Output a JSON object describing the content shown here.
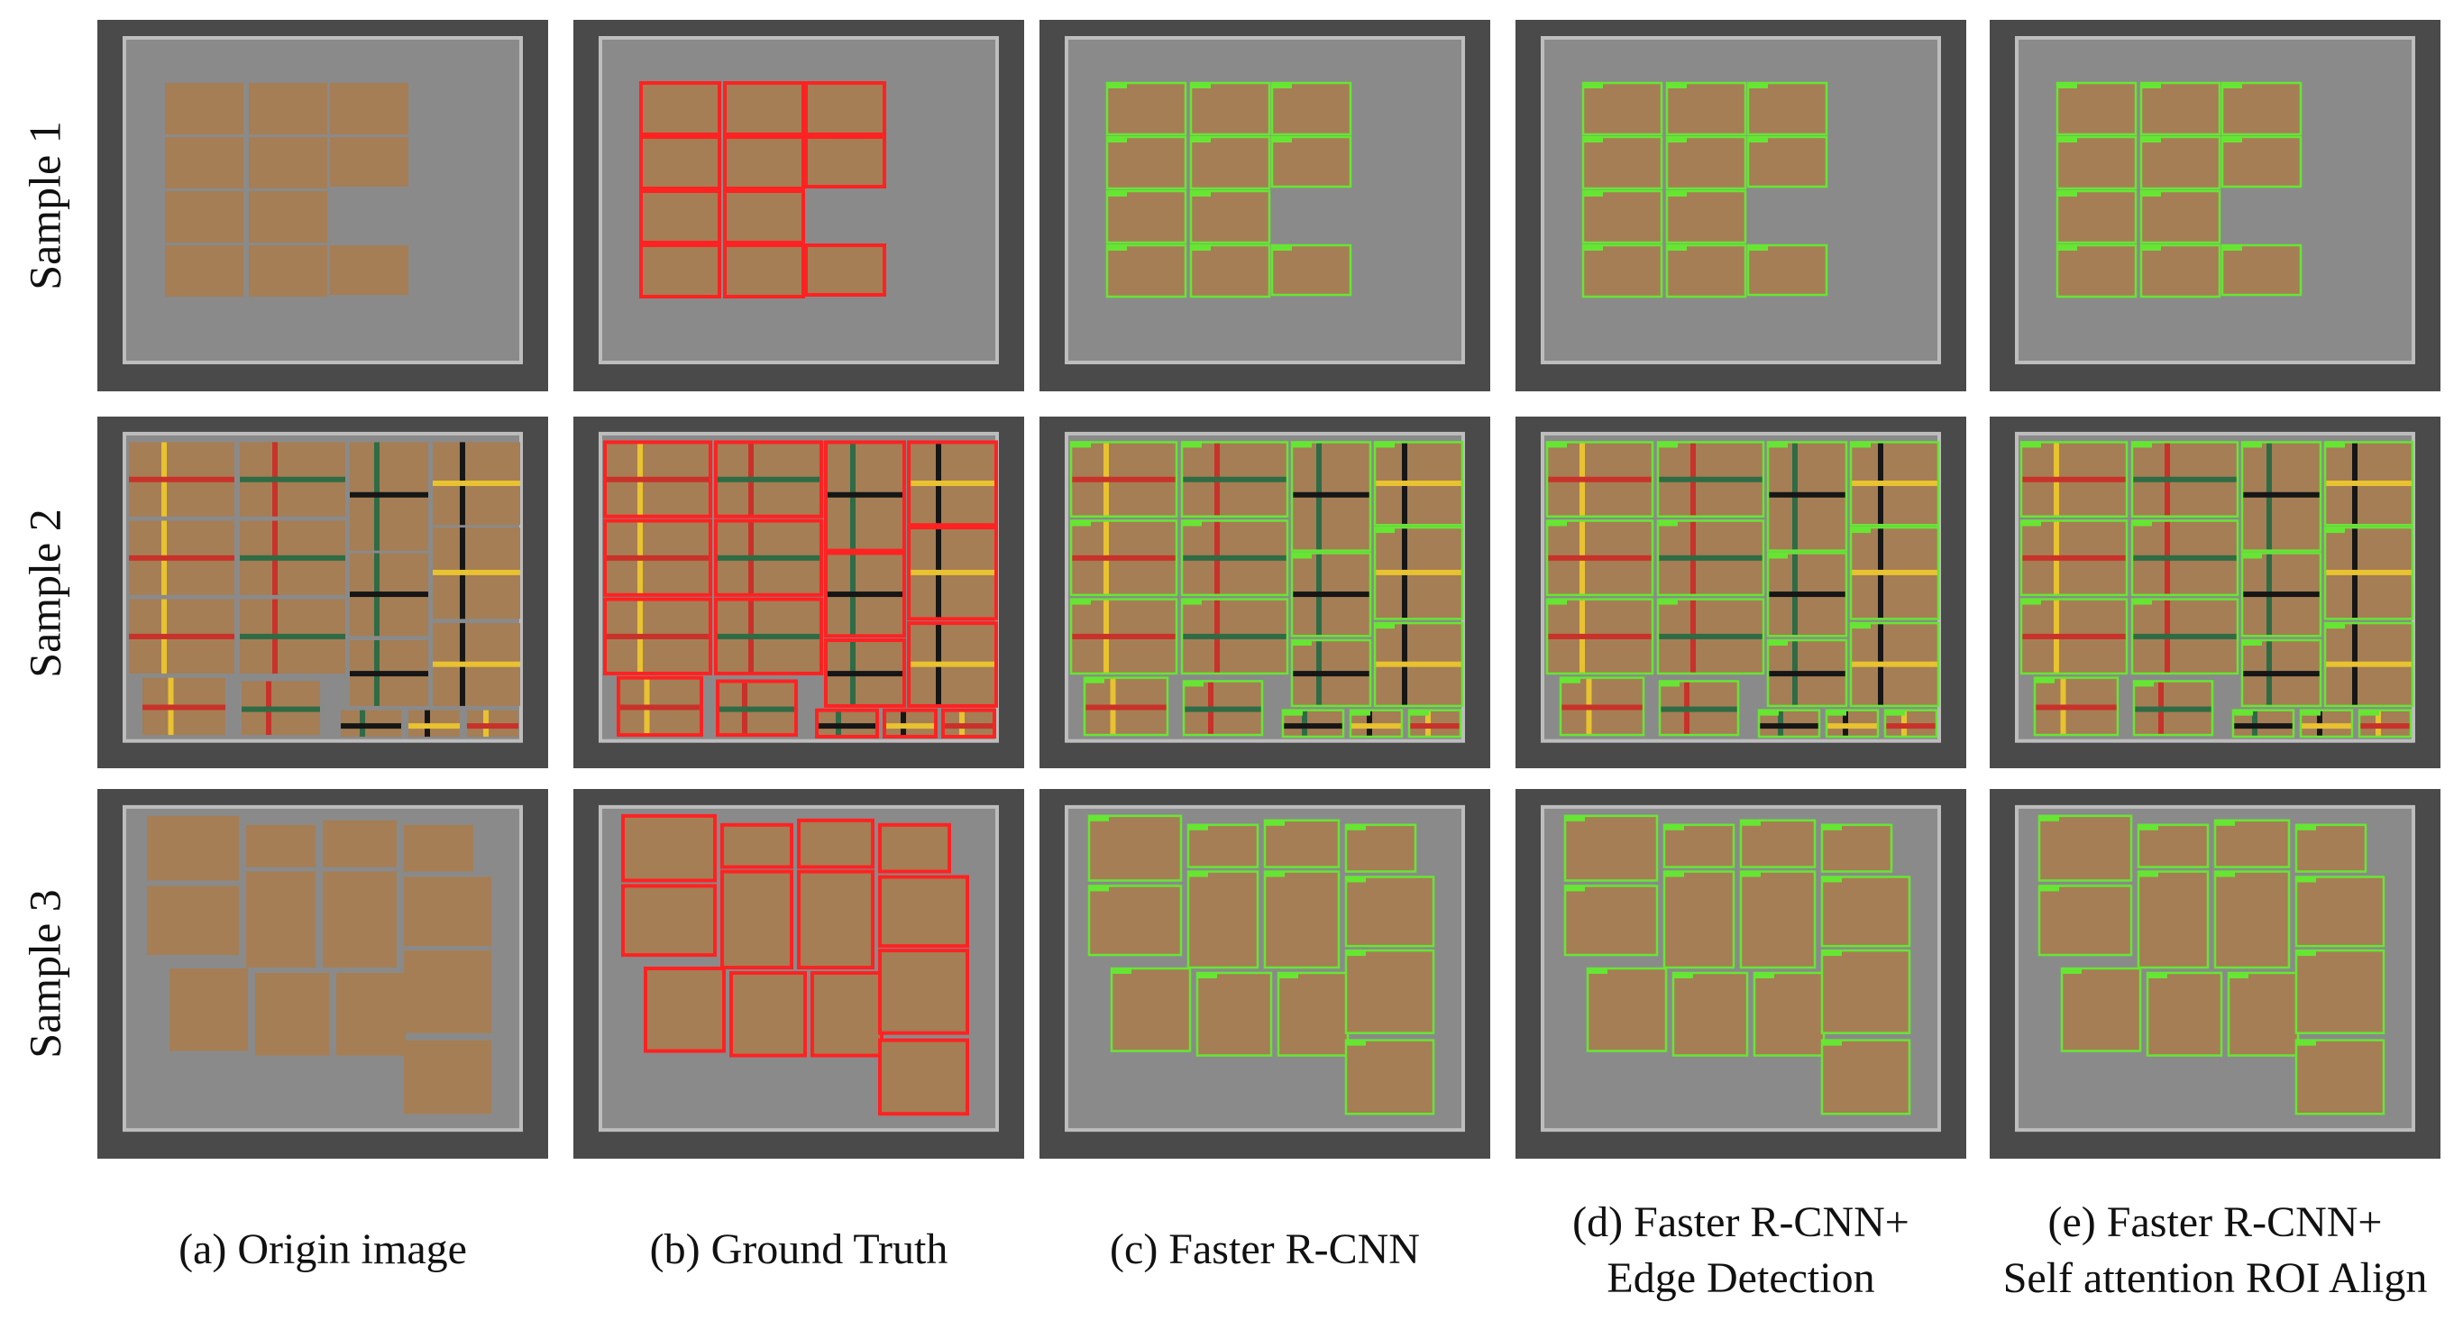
{
  "rows": [
    "Sample 1",
    "Sample 2",
    "Sample 3"
  ],
  "columns": [
    {
      "id": "origin",
      "caption": [
        "(a) Origin image"
      ],
      "box_color": null
    },
    {
      "id": "gt",
      "caption": [
        "(b) Ground Truth"
      ],
      "box_color": "#ff2222"
    },
    {
      "id": "frcnn",
      "caption": [
        "(c) Faster R-CNN"
      ],
      "box_color": "#66e633"
    },
    {
      "id": "edge",
      "caption": [
        "(d) Faster R-CNN+",
        "Edge Detection"
      ],
      "box_color": "#66e633"
    },
    {
      "id": "attn",
      "caption": [
        "(e) Faster R-CNN+",
        "Self attention ROI Align"
      ],
      "box_color": "#66e633"
    }
  ],
  "colors": {
    "background_floor": "#4a4a4a",
    "box_cardboard": "#a57e55",
    "tape_yellow": "#e8c230",
    "tape_red": "#c8322a",
    "tape_green": "#2f6b45",
    "tape_black": "#161616"
  }
}
